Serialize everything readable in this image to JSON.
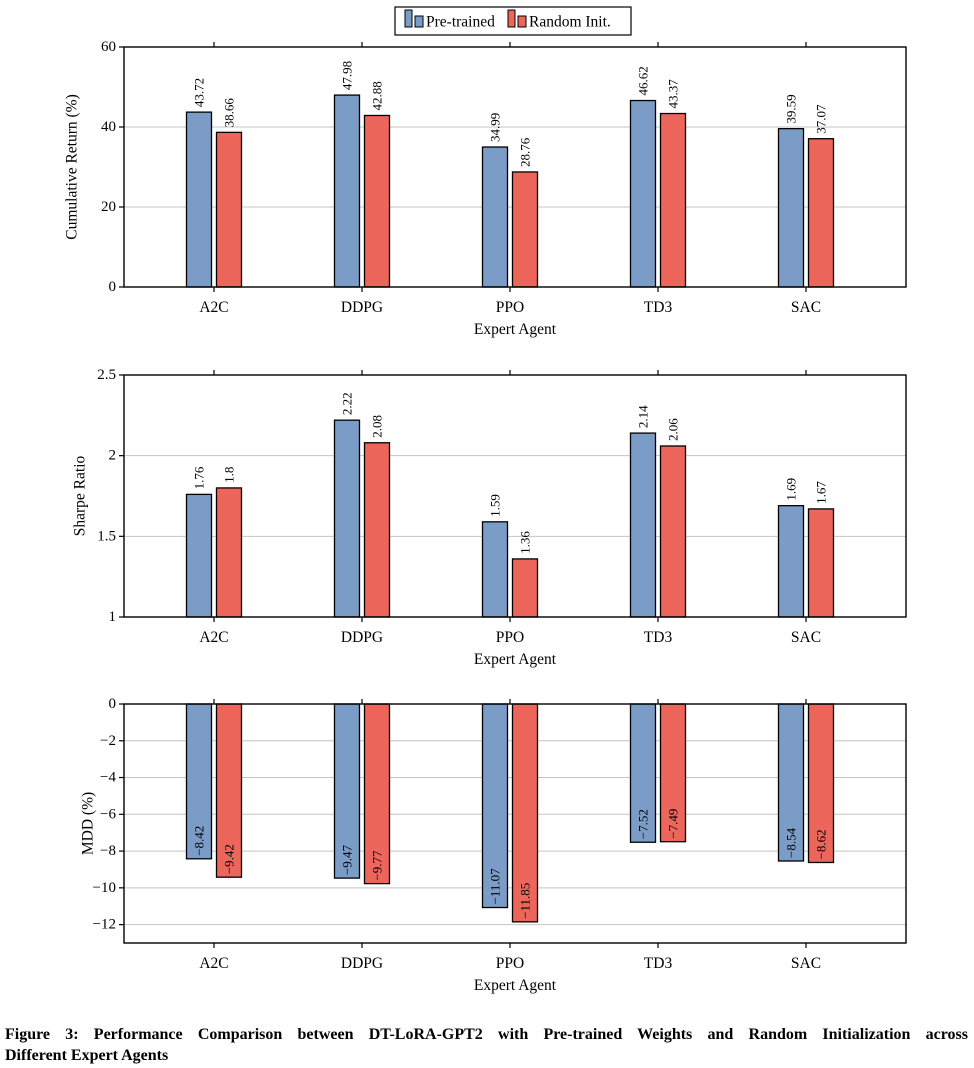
{
  "figure": {
    "legend": {
      "items": [
        {
          "label": "Pre-trained"
        },
        {
          "label": "Random Init."
        }
      ]
    },
    "caption": {
      "line1": "Figure 3: Performance Comparison between DT-LoRA-GPT2 with Pre-trained Weights and Random Initialization across",
      "line2": "Different Expert Agents"
    }
  },
  "colors": {
    "series": [
      {
        "name": "Pre-trained",
        "fill": "#7c9cc8",
        "value_label": "#2b3fc9"
      },
      {
        "name": "Random Init.",
        "fill": "#ec665c",
        "value_label": "#dc2f28"
      }
    ],
    "grid": "#c4c4c4",
    "axis": "#000000",
    "bar_stroke": "#000000",
    "background": "#ffffff"
  },
  "chart_data": [
    {
      "type": "bar",
      "title": "",
      "xlabel": "Expert Agent",
      "ylabel": "Cumulative Return (%)",
      "categories": [
        "A2C",
        "DDPG",
        "PPO",
        "TD3",
        "SAC"
      ],
      "series": [
        {
          "name": "Pre-trained",
          "values": [
            43.72,
            47.98,
            34.99,
            46.62,
            39.59
          ]
        },
        {
          "name": "Random Init.",
          "values": [
            38.66,
            42.88,
            28.76,
            43.37,
            37.07
          ]
        }
      ],
      "ylim": [
        0,
        60
      ],
      "yticks": [
        0,
        20,
        40,
        60
      ],
      "grid": true,
      "legend_position": "top-center-shared"
    },
    {
      "type": "bar",
      "title": "",
      "xlabel": "Expert Agent",
      "ylabel": "Sharpe Ratio",
      "categories": [
        "A2C",
        "DDPG",
        "PPO",
        "TD3",
        "SAC"
      ],
      "series": [
        {
          "name": "Pre-trained",
          "values": [
            1.76,
            2.22,
            1.59,
            2.14,
            1.69
          ]
        },
        {
          "name": "Random Init.",
          "values": [
            1.8,
            2.08,
            1.36,
            2.06,
            1.67
          ]
        }
      ],
      "ylim": [
        1,
        2.5
      ],
      "yticks": [
        1,
        1.5,
        2,
        2.5
      ],
      "grid": true,
      "legend_position": "top-center-shared"
    },
    {
      "type": "bar",
      "title": "",
      "xlabel": "Expert Agent",
      "ylabel": "MDD (%)",
      "categories": [
        "A2C",
        "DDPG",
        "PPO",
        "TD3",
        "SAC"
      ],
      "series": [
        {
          "name": "Pre-trained",
          "values": [
            -8.42,
            -9.47,
            -11.07,
            -7.52,
            -8.54
          ]
        },
        {
          "name": "Random Init.",
          "values": [
            -9.42,
            -9.77,
            -11.85,
            -7.49,
            -8.62
          ]
        }
      ],
      "ylim": [
        -13,
        0
      ],
      "yticks": [
        0,
        -2,
        -4,
        -6,
        -8,
        -10,
        -12
      ],
      "grid": true,
      "legend_position": "top-center-shared"
    }
  ]
}
